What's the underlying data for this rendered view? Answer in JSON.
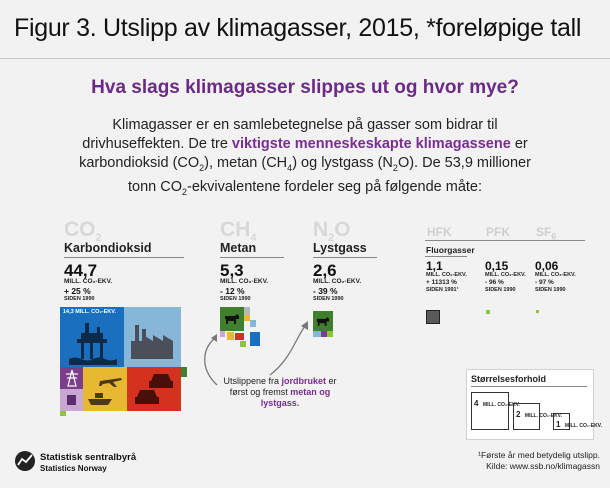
{
  "title": "Figur 3. Utslipp av klimagasser, 2015, *foreløpige tall",
  "subtitle": "Hva slags klimagasser slippes ut og hvor mye?",
  "intro": {
    "part1": "Klimagasser er en samlebetegnelse på gasser som bidrar til drivhuseffekten. De tre ",
    "highlight": "viktigste menneskeskapte klimagassene",
    "part2": " er karbondioksid (CO",
    "sub2a": "2",
    "part3": "), metan (CH",
    "sub4": "4",
    "part4": ") og lystgass (N",
    "sub2b": "2",
    "part5": "O). De 53,9 millioner tonn CO",
    "sub2c": "2",
    "part6": "-ekvivalentene fordeler seg på følgende måte:"
  },
  "gases": {
    "co2": {
      "formula": "CO",
      "formula_sub": "2",
      "name": "Karbondioksid",
      "value": "44,7",
      "unit": "MILL. CO₂-EKV.",
      "change": "+ 25 %",
      "since": "SIDEN 1990",
      "box_label": "14,3 MILL. CO₂-EKV."
    },
    "ch4": {
      "formula": "CH",
      "formula_sub": "4",
      "name": "Metan",
      "value": "5,3",
      "unit": "MILL. CO₂-EKV.",
      "change": "- 12 %",
      "since": "SIDEN 1990"
    },
    "n2o": {
      "formula": "N",
      "formula_sub": "2",
      "formula_end": "O",
      "name": "Lystgass",
      "value": "2,6",
      "unit": "MILL. CO₂-EKV.",
      "change": "- 39 %",
      "since": "SIDEN 1990"
    }
  },
  "fluor": {
    "group_label": "Fluorgasser",
    "hfk": {
      "formula": "HFK",
      "value": "1,1",
      "unit": "MILL. CO₂-EKV.",
      "change": "+ 11313 %",
      "since": "SIDEN 1991¹"
    },
    "pfk": {
      "formula": "PFK",
      "value": "0,15",
      "unit": "MILL. CO₂-EKV.",
      "change": "- 96 %",
      "since": "SIDEN 1990"
    },
    "sf6": {
      "formula": "SF",
      "formula_sub": "6",
      "value": "0,06",
      "unit": "MILL. CO₂-EKV.",
      "change": "- 97 %",
      "since": "SIDEN 1990"
    }
  },
  "note": {
    "part1": "Utslippene fra ",
    "link": "jordbruket",
    "part2": " er først og fremst ",
    "link2": "metan og lystgass."
  },
  "legend": {
    "title": "Størrelsesforhold",
    "items": [
      {
        "num": "4",
        "unit": "MILL. CO₂-EKV."
      },
      {
        "num": "2",
        "unit": "MILL. CO₂-EKV."
      },
      {
        "num": "1",
        "unit": "MILL. CO₂-EKV."
      }
    ]
  },
  "footnote": {
    "line1": "¹Første år med betydelig utslipp.",
    "line2": "Kilde: www.ssb.no/klimagassn"
  },
  "logo": {
    "name": "Statistisk sentralbyrå",
    "name_en": "Statistics Norway"
  },
  "colors": {
    "purple": "#6b2a86",
    "oil_blue": "#1a6fbe",
    "industry_blue": "#86b6d8",
    "energy_purple": "#7b3d8c",
    "transport_yellow": "#e8b832",
    "road_red": "#d2321e",
    "agri_green": "#3f7f2e",
    "green_light": "#8fc33c"
  }
}
